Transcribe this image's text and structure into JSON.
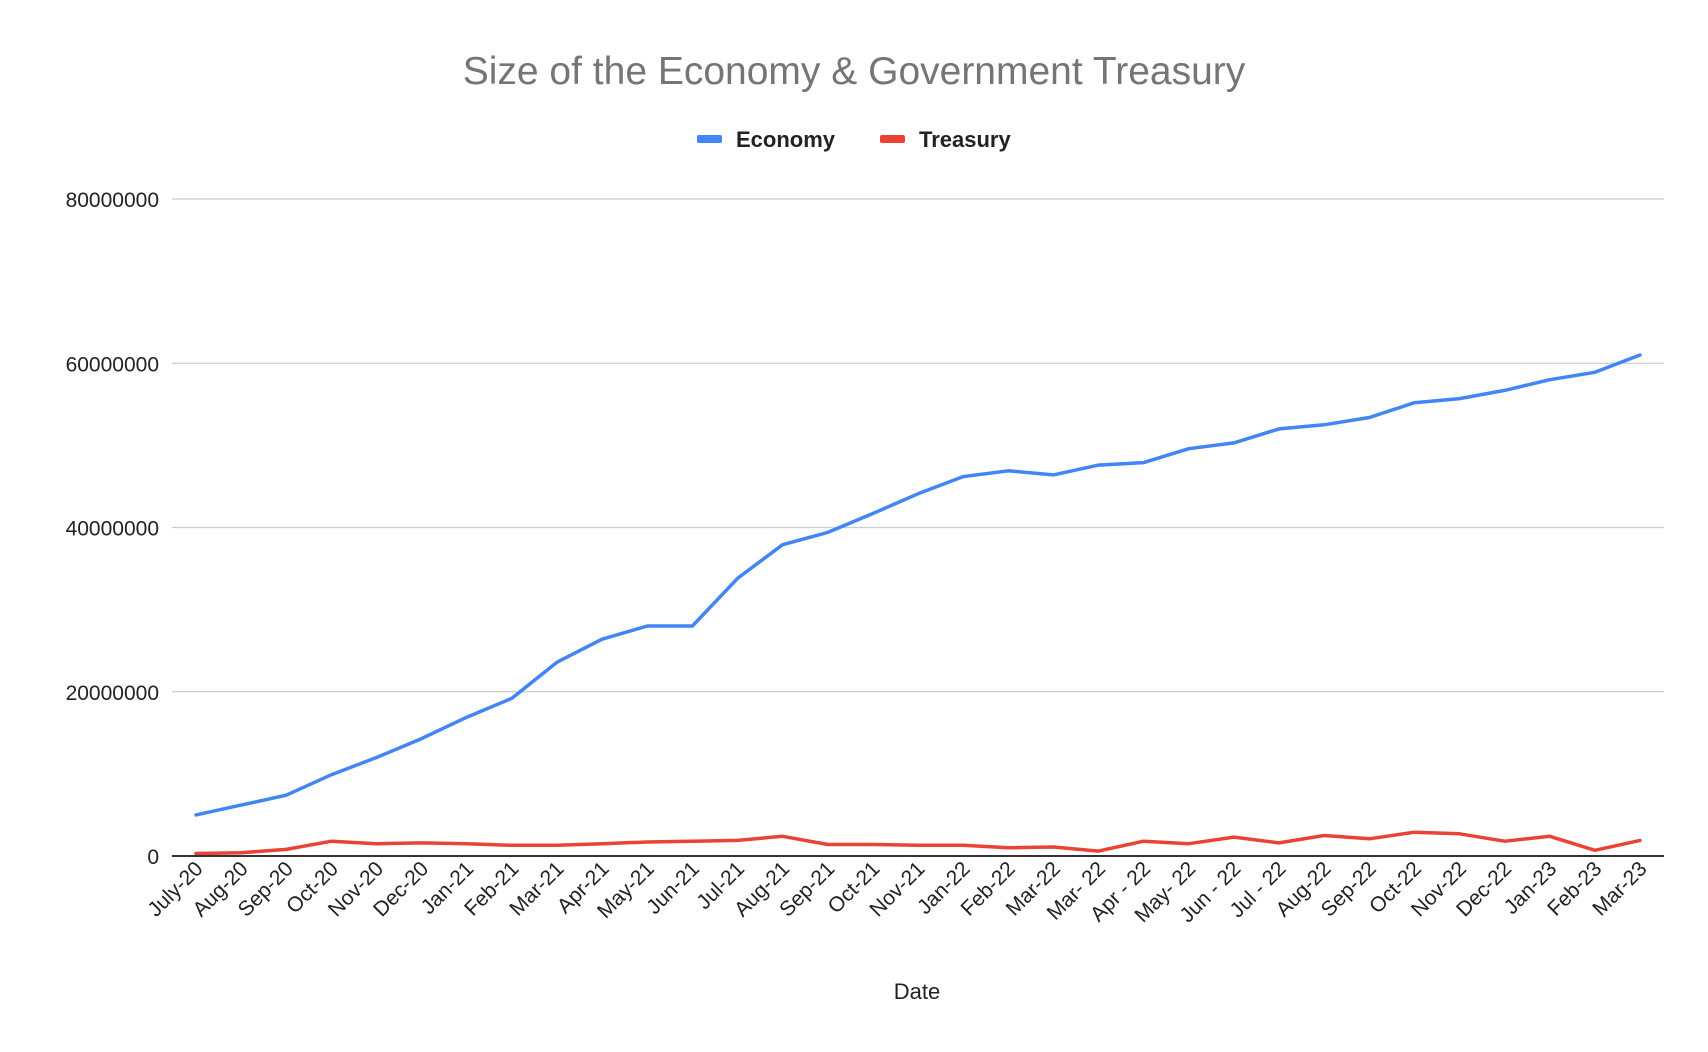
{
  "chart_data": {
    "type": "line",
    "title": "Size of the Economy & Government Treasury",
    "xlabel": "Date",
    "ylabel": "",
    "ylim": [
      0,
      80000000
    ],
    "yticks": [
      0,
      20000000,
      40000000,
      60000000,
      80000000
    ],
    "grid": true,
    "legend_position": "top",
    "categories": [
      "July-20",
      "Aug-20",
      "Sep-20",
      "Oct-20",
      "Nov-20",
      "Dec-20",
      "Jan-21",
      "Feb-21",
      "Mar-21",
      "Apr-21",
      "May-21",
      "Jun-21",
      "Jul-21",
      "Aug-21",
      "Sep-21",
      "Oct-21",
      "Nov-21",
      "Jan-22",
      "Feb-22",
      "Mar-22",
      "Mar- 22",
      "Apr - 22",
      "May- 22",
      "Jun - 22",
      "Jul - 22",
      "Aug-22",
      "Sep-22",
      "Oct-22",
      "Nov-22",
      "Dec-22",
      "Jan-23",
      "Feb-23",
      "Mar-23"
    ],
    "series": [
      {
        "name": "Economy",
        "color": "#4285f4",
        "values": [
          5000000,
          6200000,
          7400000,
          9900000,
          12000000,
          14300000,
          16900000,
          19200000,
          23600000,
          26400000,
          28000000,
          28000000,
          33800000,
          37900000,
          39400000,
          41700000,
          44100000,
          46200000,
          46900000,
          46400000,
          47600000,
          47900000,
          49600000,
          50300000,
          52000000,
          52500000,
          53400000,
          55200000,
          55700000,
          56700000,
          58000000,
          58900000,
          61000000
        ]
      },
      {
        "name": "Treasury",
        "color": "#ea4335",
        "values": [
          300000,
          400000,
          800000,
          1800000,
          1500000,
          1600000,
          1500000,
          1300000,
          1300000,
          1500000,
          1700000,
          1800000,
          1900000,
          2400000,
          1400000,
          1400000,
          1300000,
          1300000,
          1000000,
          1100000,
          600000,
          1800000,
          1500000,
          2300000,
          1600000,
          2500000,
          2100000,
          2900000,
          2700000,
          1800000,
          2400000,
          700000,
          1900000
        ]
      }
    ]
  }
}
